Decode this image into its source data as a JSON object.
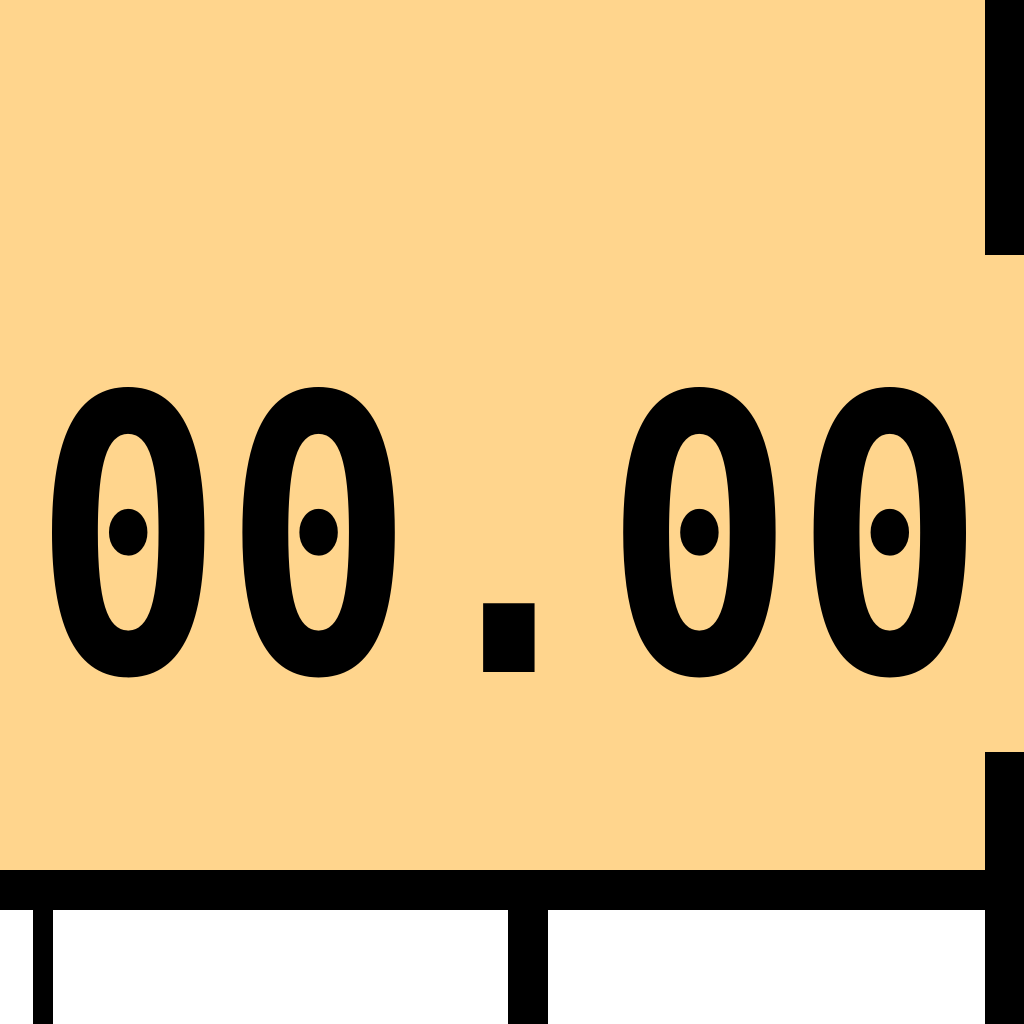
{
  "display": {
    "value": "00.00"
  }
}
